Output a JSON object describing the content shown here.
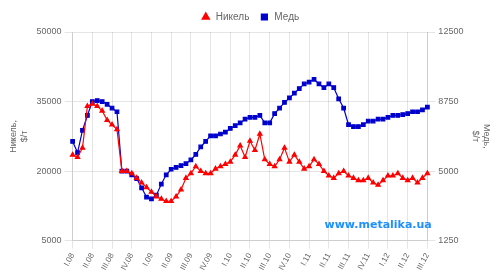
{
  "chart_data": {
    "type": "line",
    "ylabel": "Никель,\n$/т",
    "y2label": "Медь,\n$/т",
    "categories": [
      "I.08",
      null,
      null,
      null,
      "II.08",
      null,
      null,
      null,
      "III.08",
      null,
      null,
      null,
      "IV.08",
      null,
      null,
      null,
      "I.09",
      null,
      null,
      null,
      "II.09",
      null,
      null,
      null,
      "III.09",
      null,
      null,
      null,
      "IV.09",
      null,
      null,
      null,
      "I.10",
      null,
      null,
      null,
      "II.10",
      null,
      null,
      null,
      "III.10",
      null,
      null,
      null,
      "IV.10",
      null,
      null,
      null,
      "I.11",
      null,
      null,
      null,
      "II.11",
      null,
      null,
      null,
      "III.11",
      null,
      null,
      null,
      "IV.11",
      null,
      null,
      null,
      "I.12",
      null,
      null,
      null,
      "II.12",
      null,
      null,
      null,
      "III.12"
    ],
    "series": [
      {
        "name": "Никель",
        "color": "#FF0000",
        "marker": "triangle",
        "line_style": "solid",
        "values": [
          23500,
          23000,
          25000,
          34000,
          34500,
          34000,
          33000,
          31000,
          30000,
          29000,
          20000,
          20000,
          19500,
          18500,
          17500,
          16500,
          15500,
          14500,
          14000,
          13500,
          13500,
          14500,
          16000,
          18500,
          19500,
          21000,
          20000,
          19500,
          19500,
          20500,
          21000,
          21500,
          22000,
          23500,
          25500,
          23000,
          26500,
          24500,
          28000,
          22500,
          21500,
          21000,
          22500,
          25000,
          22000,
          23500,
          22000,
          20500,
          21000,
          22500,
          21500,
          20000,
          19000,
          18500,
          19500,
          20000,
          19000,
          18500,
          18000,
          18000,
          18500,
          17500,
          17000,
          18000,
          19000,
          19000,
          19500,
          18500,
          18000,
          18500,
          17500,
          18500,
          19500
        ]
      },
      {
        "name": "Медь",
        "color": "#0000CD",
        "marker": "square",
        "line_style": "solid",
        "axis": "y2",
        "values": [
          6600,
          6000,
          7200,
          8000,
          8750,
          8800,
          8750,
          8600,
          8400,
          8200,
          5000,
          5000,
          4800,
          4600,
          4100,
          3600,
          3500,
          3700,
          4300,
          4800,
          5100,
          5200,
          5300,
          5400,
          5600,
          5900,
          6300,
          6600,
          6900,
          6900,
          7000,
          7100,
          7300,
          7450,
          7600,
          7800,
          7900,
          7900,
          8000,
          7600,
          7600,
          8100,
          8400,
          8700,
          8950,
          9200,
          9450,
          9700,
          9800,
          9950,
          9700,
          9500,
          9700,
          9500,
          8900,
          8400,
          7500,
          7400,
          7400,
          7500,
          7700,
          7700,
          7800,
          7800,
          7900,
          8000,
          8000,
          8050,
          8100,
          8200,
          8200,
          8300,
          8450
        ]
      }
    ],
    "ylim": [
      5000,
      50000
    ],
    "yticks": [
      5000,
      20000,
      35000,
      50000
    ],
    "y2lim": [
      1250,
      12500
    ],
    "y2ticks": [
      1250,
      5000,
      8750,
      12500
    ],
    "grid": true,
    "legend": "top",
    "annotations": [
      {
        "text": "www.metalika.ua",
        "color": "#1E90FF"
      }
    ]
  }
}
